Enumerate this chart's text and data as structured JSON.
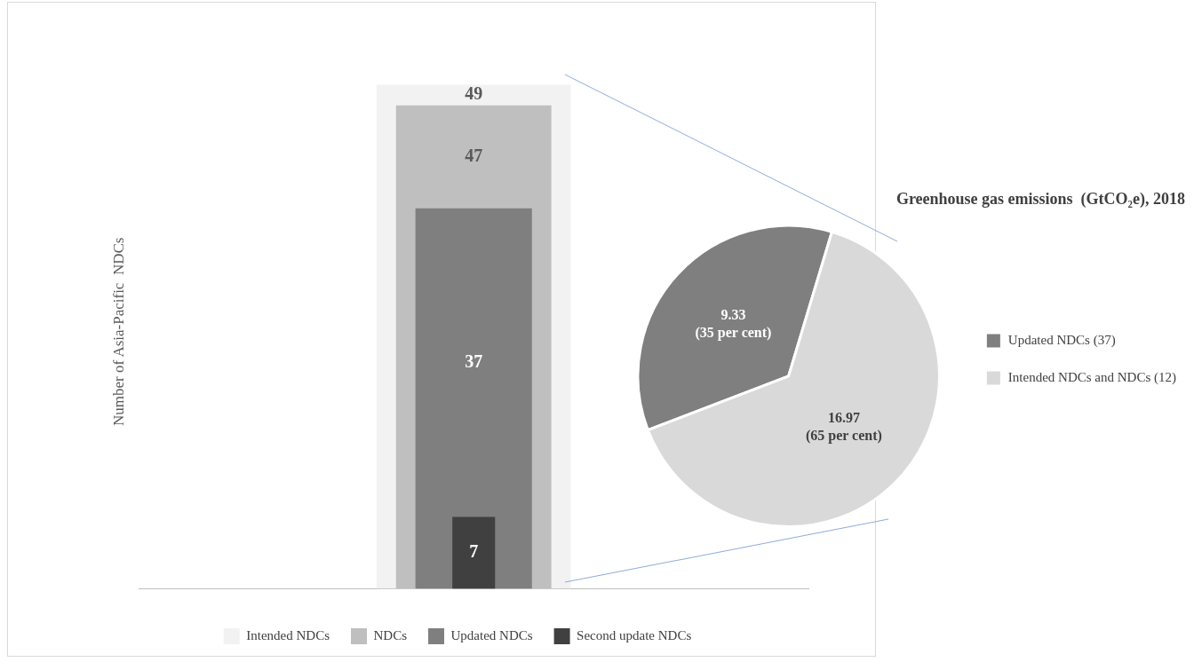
{
  "chart_data": [
    {
      "type": "bar",
      "ylabel": "Number of Asia-Pacific  NDCs",
      "categories": [
        null
      ],
      "series": [
        {
          "name": "Intended NDCs",
          "color": "#f2f2f2",
          "values": [
            49
          ]
        },
        {
          "name": "NDCs",
          "color": "#bfbfbf",
          "values": [
            47
          ]
        },
        {
          "name": "Updated NDCs",
          "color": "#7f7f7f",
          "values": [
            37
          ]
        },
        {
          "name": "Second update NDCs",
          "color": "#404040",
          "values": [
            7
          ]
        }
      ],
      "data_labels": true,
      "legend": "bottom",
      "grid": false
    },
    {
      "type": "pie",
      "title": "Greenhouse gas emissions  (GtCO₂e), 2018",
      "categories": [
        "Updated NDCs (37)",
        "Intended NDCs and NDCs (12)"
      ],
      "values": [
        9.33,
        16.97
      ],
      "colors": [
        "#7f7f7f",
        "#d9d9d9"
      ],
      "value_labels": [
        "9.33\n(35 per cent)",
        "16.97\n(65 per cent)"
      ],
      "legend": "right"
    }
  ]
}
